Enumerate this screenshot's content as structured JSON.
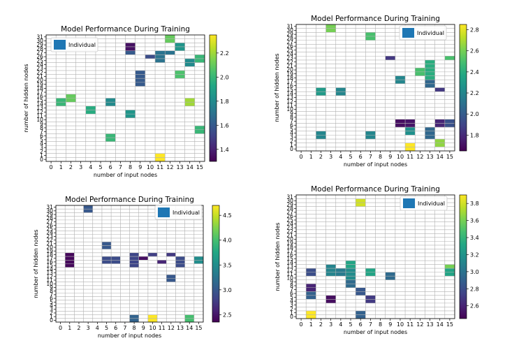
{
  "chart_data": [
    {
      "type": "heatmap",
      "title": "Model Performance During Training",
      "xlabel": "number of input nodes",
      "ylabel": "number of hidden nodes",
      "xlim": [
        0,
        15
      ],
      "ylim": [
        0,
        31
      ],
      "x_ticks": [
        "0",
        "1",
        "2",
        "3",
        "4",
        "5",
        "6",
        "7",
        "8",
        "9",
        "10",
        "11",
        "12",
        "13",
        "14",
        "15"
      ],
      "y_ticks": [
        "0",
        "1",
        "2",
        "3",
        "4",
        "5",
        "6",
        "7",
        "8",
        "9",
        "10",
        "11",
        "12",
        "13",
        "14",
        "15",
        "16",
        "17",
        "18",
        "19",
        "20",
        "21",
        "22",
        "23",
        "24",
        "25",
        "26",
        "27",
        "28",
        "29",
        "30",
        "31"
      ],
      "legend": "Individual",
      "legend_position": "top-left",
      "colorbar": {
        "min": 1.3,
        "max": 2.35,
        "ticks": [
          "1.4",
          "1.6",
          "1.8",
          "2.0",
          "2.2"
        ]
      },
      "cells": [
        {
          "x": 1,
          "y": 14,
          "v": 2.0
        },
        {
          "x": 1,
          "y": 15,
          "v": 2.0
        },
        {
          "x": 2,
          "y": 15,
          "v": 2.1
        },
        {
          "x": 2,
          "y": 16,
          "v": 2.1
        },
        {
          "x": 4,
          "y": 12,
          "v": 1.95
        },
        {
          "x": 4,
          "y": 13,
          "v": 1.95
        },
        {
          "x": 6,
          "y": 14,
          "v": 1.8
        },
        {
          "x": 6,
          "y": 15,
          "v": 1.8
        },
        {
          "x": 6,
          "y": 5,
          "v": 2.0
        },
        {
          "x": 6,
          "y": 6,
          "v": 2.0
        },
        {
          "x": 8,
          "y": 11,
          "v": 1.85
        },
        {
          "x": 8,
          "y": 12,
          "v": 1.85
        },
        {
          "x": 8,
          "y": 27,
          "v": 1.6
        },
        {
          "x": 8,
          "y": 28,
          "v": 1.35
        },
        {
          "x": 8,
          "y": 29,
          "v": 1.35
        },
        {
          "x": 9,
          "y": 19,
          "v": 1.6
        },
        {
          "x": 9,
          "y": 20,
          "v": 1.6
        },
        {
          "x": 9,
          "y": 21,
          "v": 1.6
        },
        {
          "x": 9,
          "y": 22,
          "v": 1.6
        },
        {
          "x": 10,
          "y": 26,
          "v": 1.55
        },
        {
          "x": 11,
          "y": 0,
          "v": 2.35
        },
        {
          "x": 11,
          "y": 1,
          "v": 2.35
        },
        {
          "x": 11,
          "y": 25,
          "v": 1.7
        },
        {
          "x": 11,
          "y": 26,
          "v": 1.7
        },
        {
          "x": 11,
          "y": 27,
          "v": 1.7
        },
        {
          "x": 12,
          "y": 27,
          "v": 1.7
        },
        {
          "x": 12,
          "y": 30,
          "v": 2.1
        },
        {
          "x": 12,
          "y": 31,
          "v": 2.1
        },
        {
          "x": 13,
          "y": 21,
          "v": 2.05
        },
        {
          "x": 13,
          "y": 22,
          "v": 2.05
        },
        {
          "x": 13,
          "y": 28,
          "v": 1.85
        },
        {
          "x": 13,
          "y": 29,
          "v": 1.85
        },
        {
          "x": 14,
          "y": 14,
          "v": 2.2
        },
        {
          "x": 14,
          "y": 15,
          "v": 2.2
        },
        {
          "x": 14,
          "y": 24,
          "v": 1.8
        },
        {
          "x": 14,
          "y": 25,
          "v": 1.8
        },
        {
          "x": 15,
          "y": 7,
          "v": 2.0
        },
        {
          "x": 15,
          "y": 8,
          "v": 2.0
        },
        {
          "x": 15,
          "y": 25,
          "v": 2.0
        },
        {
          "x": 15,
          "y": 26,
          "v": 2.0
        }
      ]
    },
    {
      "type": "heatmap",
      "title": "Model Performance During Training",
      "xlabel": "number of input nodes",
      "ylabel": "number of hidden nodes",
      "xlim": [
        0,
        15
      ],
      "ylim": [
        0,
        31
      ],
      "x_ticks": [
        "0",
        "1",
        "2",
        "3",
        "4",
        "5",
        "6",
        "7",
        "8",
        "9",
        "10",
        "11",
        "12",
        "13",
        "14",
        "15"
      ],
      "y_ticks": [
        "0",
        "1",
        "2",
        "3",
        "4",
        "5",
        "6",
        "7",
        "8",
        "9",
        "10",
        "11",
        "12",
        "13",
        "14",
        "15",
        "16",
        "17",
        "18",
        "19",
        "20",
        "21",
        "22",
        "23",
        "24",
        "25",
        "26",
        "27",
        "28",
        "29",
        "30",
        "31"
      ],
      "legend": "Individual",
      "legend_position": "top-right",
      "colorbar": {
        "min": 1.65,
        "max": 2.85,
        "ticks": [
          "1.8",
          "2.0",
          "2.2",
          "2.4",
          "2.6",
          "2.8"
        ]
      },
      "cells": [
        {
          "x": 2,
          "y": 3,
          "v": 2.2
        },
        {
          "x": 2,
          "y": 4,
          "v": 2.2
        },
        {
          "x": 2,
          "y": 14,
          "v": 2.3
        },
        {
          "x": 2,
          "y": 15,
          "v": 2.3
        },
        {
          "x": 3,
          "y": 30,
          "v": 2.6
        },
        {
          "x": 3,
          "y": 31,
          "v": 2.6
        },
        {
          "x": 4,
          "y": 14,
          "v": 2.2
        },
        {
          "x": 4,
          "y": 15,
          "v": 2.2
        },
        {
          "x": 7,
          "y": 3,
          "v": 2.2
        },
        {
          "x": 7,
          "y": 4,
          "v": 2.2
        },
        {
          "x": 7,
          "y": 28,
          "v": 2.5
        },
        {
          "x": 7,
          "y": 29,
          "v": 2.5
        },
        {
          "x": 9,
          "y": 23,
          "v": 1.85
        },
        {
          "x": 10,
          "y": 6,
          "v": 1.7
        },
        {
          "x": 10,
          "y": 7,
          "v": 1.7
        },
        {
          "x": 10,
          "y": 17,
          "v": 2.2
        },
        {
          "x": 10,
          "y": 18,
          "v": 2.2
        },
        {
          "x": 11,
          "y": 0,
          "v": 2.85
        },
        {
          "x": 11,
          "y": 1,
          "v": 2.85
        },
        {
          "x": 11,
          "y": 4,
          "v": 2.25
        },
        {
          "x": 11,
          "y": 5,
          "v": 2.25
        },
        {
          "x": 11,
          "y": 6,
          "v": 1.72
        },
        {
          "x": 11,
          "y": 7,
          "v": 1.72
        },
        {
          "x": 12,
          "y": 19,
          "v": 2.5
        },
        {
          "x": 12,
          "y": 20,
          "v": 2.5
        },
        {
          "x": 13,
          "y": 3,
          "v": 2.05
        },
        {
          "x": 13,
          "y": 4,
          "v": 2.05
        },
        {
          "x": 13,
          "y": 5,
          "v": 2.05
        },
        {
          "x": 13,
          "y": 16,
          "v": 2.05
        },
        {
          "x": 13,
          "y": 17,
          "v": 2.05
        },
        {
          "x": 13,
          "y": 18,
          "v": 2.4
        },
        {
          "x": 13,
          "y": 19,
          "v": 2.4
        },
        {
          "x": 13,
          "y": 20,
          "v": 2.4
        },
        {
          "x": 13,
          "y": 21,
          "v": 2.4
        },
        {
          "x": 13,
          "y": 22,
          "v": 2.4
        },
        {
          "x": 14,
          "y": 1,
          "v": 2.65
        },
        {
          "x": 14,
          "y": 2,
          "v": 2.65
        },
        {
          "x": 14,
          "y": 6,
          "v": 1.78
        },
        {
          "x": 14,
          "y": 7,
          "v": 1.78
        },
        {
          "x": 14,
          "y": 15,
          "v": 1.85
        },
        {
          "x": 15,
          "y": 6,
          "v": 1.95
        },
        {
          "x": 15,
          "y": 7,
          "v": 1.95
        },
        {
          "x": 15,
          "y": 23,
          "v": 2.5
        }
      ]
    },
    {
      "type": "heatmap",
      "title": "Model Performance During Training",
      "xlabel": "number of input nodes",
      "ylabel": "number of hidden nodes",
      "xlim": [
        0,
        15
      ],
      "ylim": [
        0,
        31
      ],
      "x_ticks": [
        "0",
        "1",
        "2",
        "3",
        "4",
        "5",
        "6",
        "7",
        "8",
        "9",
        "10",
        "11",
        "12",
        "13",
        "14",
        "15"
      ],
      "y_ticks": [
        "0",
        "1",
        "2",
        "3",
        "4",
        "5",
        "6",
        "7",
        "8",
        "9",
        "10",
        "11",
        "12",
        "13",
        "14",
        "15",
        "16",
        "17",
        "18",
        "19",
        "20",
        "21",
        "22",
        "23",
        "24",
        "25",
        "26",
        "27",
        "28",
        "29",
        "30",
        "31"
      ],
      "legend": "Individual",
      "legend_position": "top-right",
      "colorbar": {
        "min": 2.35,
        "max": 4.7,
        "ticks": [
          "2.5",
          "3.0",
          "3.5",
          "4.0",
          "4.5"
        ]
      },
      "cells": [
        {
          "x": 1,
          "y": 15,
          "v": 2.4
        },
        {
          "x": 1,
          "y": 16,
          "v": 2.4
        },
        {
          "x": 1,
          "y": 17,
          "v": 2.4
        },
        {
          "x": 1,
          "y": 18,
          "v": 2.4
        },
        {
          "x": 3,
          "y": 30,
          "v": 3.0
        },
        {
          "x": 3,
          "y": 31,
          "v": 3.0
        },
        {
          "x": 5,
          "y": 16,
          "v": 2.9
        },
        {
          "x": 5,
          "y": 17,
          "v": 2.9
        },
        {
          "x": 5,
          "y": 20,
          "v": 3.0
        },
        {
          "x": 5,
          "y": 21,
          "v": 3.0
        },
        {
          "x": 6,
          "y": 16,
          "v": 2.9
        },
        {
          "x": 6,
          "y": 17,
          "v": 2.9
        },
        {
          "x": 8,
          "y": 0,
          "v": 3.1
        },
        {
          "x": 8,
          "y": 1,
          "v": 3.1
        },
        {
          "x": 8,
          "y": 15,
          "v": 2.85
        },
        {
          "x": 8,
          "y": 16,
          "v": 2.85
        },
        {
          "x": 8,
          "y": 17,
          "v": 2.85
        },
        {
          "x": 8,
          "y": 18,
          "v": 2.85
        },
        {
          "x": 9,
          "y": 17,
          "v": 2.45
        },
        {
          "x": 10,
          "y": 0,
          "v": 4.7
        },
        {
          "x": 10,
          "y": 1,
          "v": 4.7
        },
        {
          "x": 10,
          "y": 18,
          "v": 2.8
        },
        {
          "x": 11,
          "y": 16,
          "v": 2.6
        },
        {
          "x": 12,
          "y": 11,
          "v": 3.0
        },
        {
          "x": 12,
          "y": 12,
          "v": 3.0
        },
        {
          "x": 12,
          "y": 18,
          "v": 2.75
        },
        {
          "x": 13,
          "y": 15,
          "v": 2.9
        },
        {
          "x": 13,
          "y": 16,
          "v": 2.9
        },
        {
          "x": 13,
          "y": 17,
          "v": 2.9
        },
        {
          "x": 14,
          "y": 0,
          "v": 4.0
        },
        {
          "x": 14,
          "y": 1,
          "v": 4.0
        },
        {
          "x": 15,
          "y": 16,
          "v": 3.5
        },
        {
          "x": 15,
          "y": 17,
          "v": 3.5
        }
      ]
    },
    {
      "type": "heatmap",
      "title": "Model Performance During Training",
      "xlabel": "number of input nodes",
      "ylabel": "number of hidden nodes",
      "xlim": [
        0,
        15
      ],
      "ylim": [
        0,
        31
      ],
      "x_ticks": [
        "0",
        "1",
        "2",
        "3",
        "4",
        "5",
        "6",
        "7",
        "8",
        "9",
        "10",
        "11",
        "12",
        "13",
        "14",
        "15"
      ],
      "y_ticks": [
        "0",
        "1",
        "2",
        "3",
        "4",
        "5",
        "6",
        "7",
        "8",
        "9",
        "10",
        "11",
        "12",
        "13",
        "14",
        "15",
        "16",
        "17",
        "18",
        "19",
        "20",
        "21",
        "22",
        "23",
        "24",
        "25",
        "26",
        "27",
        "28",
        "29",
        "30",
        "31"
      ],
      "legend": "Individual",
      "legend_position": "top-right",
      "colorbar": {
        "min": 2.45,
        "max": 3.9,
        "ticks": [
          "2.6",
          "2.8",
          "3.0",
          "3.2",
          "3.4",
          "3.6",
          "3.8"
        ]
      },
      "cells": [
        {
          "x": 1,
          "y": 0,
          "v": 3.9
        },
        {
          "x": 1,
          "y": 1,
          "v": 3.9
        },
        {
          "x": 1,
          "y": 5,
          "v": 2.9
        },
        {
          "x": 1,
          "y": 6,
          "v": 2.9
        },
        {
          "x": 1,
          "y": 7,
          "v": 2.6
        },
        {
          "x": 1,
          "y": 8,
          "v": 2.6
        },
        {
          "x": 1,
          "y": 11,
          "v": 2.8
        },
        {
          "x": 1,
          "y": 12,
          "v": 2.8
        },
        {
          "x": 3,
          "y": 4,
          "v": 2.5
        },
        {
          "x": 3,
          "y": 5,
          "v": 2.5
        },
        {
          "x": 3,
          "y": 11,
          "v": 3.1
        },
        {
          "x": 3,
          "y": 12,
          "v": 3.1
        },
        {
          "x": 3,
          "y": 13,
          "v": 3.1
        },
        {
          "x": 4,
          "y": 11,
          "v": 3.05
        },
        {
          "x": 4,
          "y": 12,
          "v": 3.05
        },
        {
          "x": 5,
          "y": 8,
          "v": 2.95
        },
        {
          "x": 5,
          "y": 9,
          "v": 2.95
        },
        {
          "x": 5,
          "y": 10,
          "v": 3.15
        },
        {
          "x": 5,
          "y": 11,
          "v": 3.15
        },
        {
          "x": 5,
          "y": 12,
          "v": 3.15
        },
        {
          "x": 5,
          "y": 13,
          "v": 3.3
        },
        {
          "x": 5,
          "y": 14,
          "v": 3.3
        },
        {
          "x": 6,
          "y": 0,
          "v": 2.9
        },
        {
          "x": 6,
          "y": 1,
          "v": 2.9
        },
        {
          "x": 6,
          "y": 6,
          "v": 2.85
        },
        {
          "x": 6,
          "y": 7,
          "v": 2.85
        },
        {
          "x": 6,
          "y": 29,
          "v": 3.8
        },
        {
          "x": 6,
          "y": 30,
          "v": 3.8
        },
        {
          "x": 7,
          "y": 4,
          "v": 2.7
        },
        {
          "x": 7,
          "y": 5,
          "v": 2.7
        },
        {
          "x": 7,
          "y": 11,
          "v": 3.3
        },
        {
          "x": 7,
          "y": 12,
          "v": 3.3
        },
        {
          "x": 9,
          "y": 10,
          "v": 2.95
        },
        {
          "x": 9,
          "y": 11,
          "v": 2.95
        },
        {
          "x": 15,
          "y": 11,
          "v": 3.3
        },
        {
          "x": 15,
          "y": 12,
          "v": 3.3
        },
        {
          "x": 15,
          "y": 13,
          "v": 3.6
        }
      ]
    }
  ]
}
